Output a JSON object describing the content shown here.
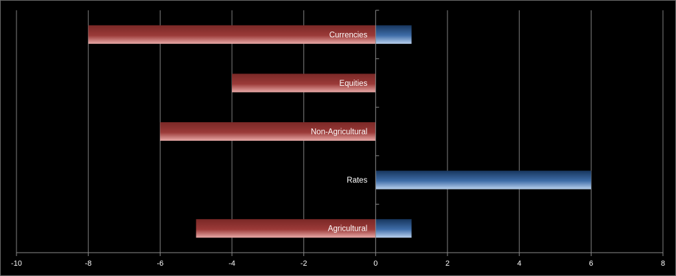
{
  "chart_data": {
    "type": "bar",
    "orientation": "horizontal",
    "categories": [
      "Currencies",
      "Equities",
      "Non-Agricultural",
      "Rates",
      "Agricultural"
    ],
    "series": [
      {
        "values": [
          -8,
          -4,
          -6,
          0,
          -5
        ],
        "color": "#953735"
      },
      {
        "values": [
          1,
          0,
          0,
          6,
          1
        ],
        "color": "#4f81bd"
      }
    ],
    "xlim": [
      -10,
      8
    ],
    "x_ticks": [
      -10,
      -8,
      -6,
      -4,
      -2,
      0,
      2,
      4,
      6,
      8
    ],
    "title": "",
    "xlabel": "",
    "ylabel": "",
    "grid": "vertical",
    "legend": "none",
    "background": "#000000"
  }
}
